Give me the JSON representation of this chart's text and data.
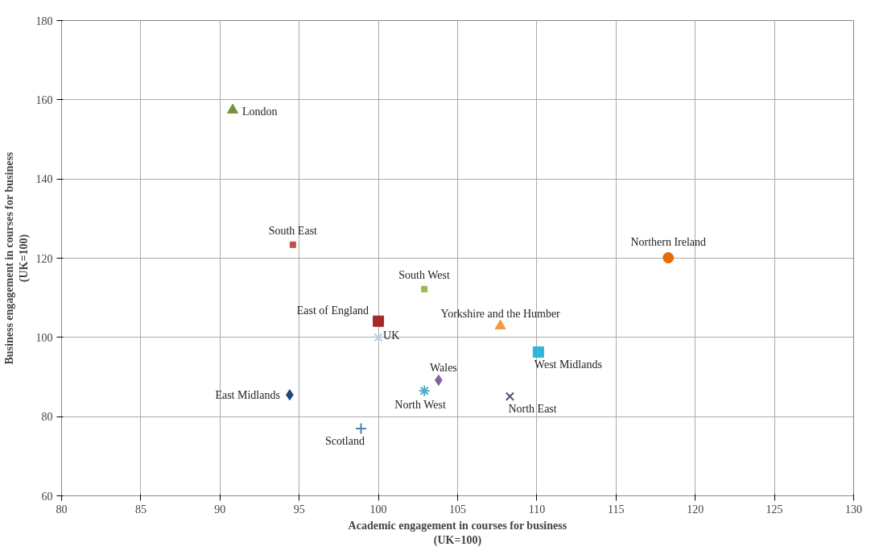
{
  "chart_data": {
    "type": "scatter",
    "xlabel": "Academic engagement in courses for business\n(UK=100)",
    "ylabel": "Business engagement in courses for business\n(UK=100)",
    "xlim": [
      80,
      130
    ],
    "xticks": [
      80,
      85,
      90,
      95,
      100,
      105,
      110,
      115,
      120,
      125,
      130
    ],
    "ylim": [
      60,
      180
    ],
    "yticks": [
      60,
      80,
      100,
      120,
      140,
      160,
      180
    ],
    "grid": true,
    "series": [
      {
        "name": "London",
        "color": "#77933c",
        "marker": "triangle",
        "x": [
          90.8
        ],
        "values": [
          157.4
        ]
      },
      {
        "name": "South East",
        "color": "#c0504d",
        "marker": "square",
        "x": [
          94.6
        ],
        "values": [
          123.4
        ]
      },
      {
        "name": "Northern Ireland",
        "color": "#e46c0a",
        "marker": "circle",
        "x": [
          118.3
        ],
        "values": [
          120.1
        ]
      },
      {
        "name": "South West",
        "color": "#9bbb59",
        "marker": "square",
        "x": [
          102.9
        ],
        "values": [
          112.2
        ]
      },
      {
        "name": "East of England",
        "color": "#a5282a",
        "marker": "square",
        "x": [
          100.0
        ],
        "values": [
          104.1
        ]
      },
      {
        "name": "UK",
        "color": "#b9cde5",
        "marker": "x",
        "x": [
          100.0
        ],
        "values": [
          100.0
        ]
      },
      {
        "name": "Yorkshire and the Humber",
        "color": "#f79646",
        "marker": "triangle",
        "x": [
          107.7
        ],
        "values": [
          102.9
        ]
      },
      {
        "name": "West Midlands",
        "color": "#31b6d8",
        "marker": "square",
        "x": [
          110.1
        ],
        "values": [
          96.3
        ]
      },
      {
        "name": "Wales",
        "color": "#8064a2",
        "marker": "diamond",
        "x": [
          103.8
        ],
        "values": [
          89.2
        ]
      },
      {
        "name": "East Midlands",
        "color": "#1f497d",
        "marker": "diamond",
        "x": [
          94.4
        ],
        "values": [
          85.5
        ]
      },
      {
        "name": "North West",
        "color": "#4bacc6",
        "marker": "cross",
        "x": [
          102.9
        ],
        "values": [
          86.5
        ]
      },
      {
        "name": "North East",
        "color": "#604a7b",
        "marker": "x",
        "x": [
          108.3
        ],
        "values": [
          85.1
        ]
      },
      {
        "name": "Scotland",
        "color": "#4f81bd",
        "marker": "plus",
        "x": [
          98.9
        ],
        "values": [
          77.0
        ]
      }
    ]
  }
}
